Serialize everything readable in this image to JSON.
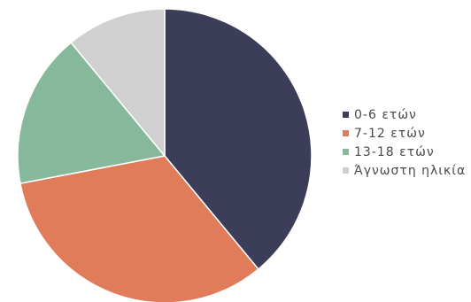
{
  "chart_data": {
    "type": "pie",
    "categories": [
      "0-6 ετών",
      "7-12 ετών",
      "13-18 ετών",
      "Άγνωστη ηλικία"
    ],
    "values": [
      39,
      33,
      17,
      11
    ],
    "colors": [
      "#3c3e59",
      "#e07c5a",
      "#86b99c",
      "#d0d0d0"
    ],
    "legend_position": "right"
  }
}
